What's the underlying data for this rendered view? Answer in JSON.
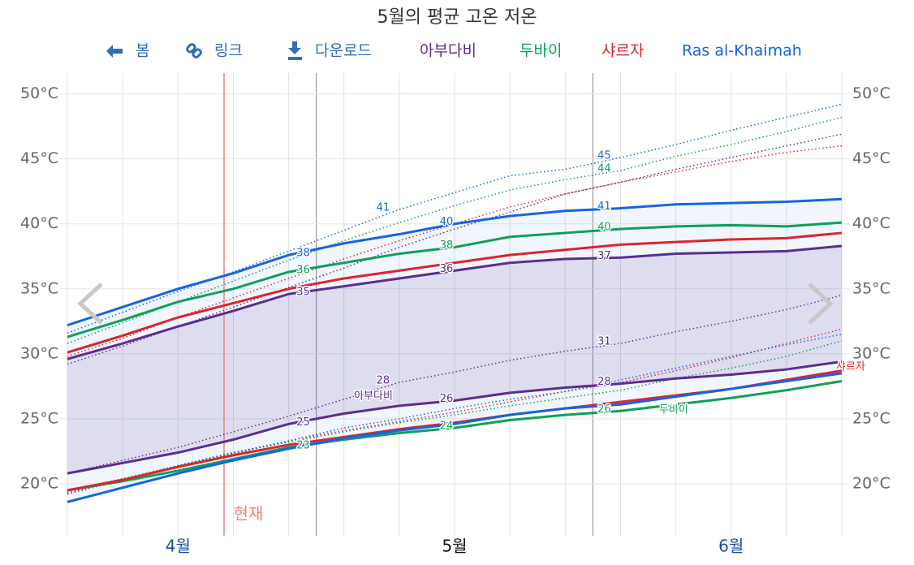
{
  "toolbar": [
    "봄",
    "링크",
    "다운로드"
  ],
  "chart_data": {
    "type": "line",
    "title": "5월의 평균 고온 저온",
    "today_label": "현재",
    "categories": [
      null,
      null,
      "4월",
      null,
      null,
      null,
      null,
      "5월",
      null,
      null,
      null,
      null,
      "6월",
      null,
      null
    ],
    "ylim": [
      16,
      51.6
    ],
    "yticks": [
      {
        "value": 20,
        "label": "20°C"
      },
      {
        "value": 25,
        "label": "25°C"
      },
      {
        "value": 30,
        "label": "30°C"
      },
      {
        "value": 35,
        "label": "35°C"
      },
      {
        "value": 40,
        "label": "40°C"
      },
      {
        "value": 45,
        "label": "45°C"
      },
      {
        "value": 50,
        "label": "50°C"
      }
    ],
    "grid": true,
    "series": [
      {
        "name": "아부다비",
        "color": "#5c2d91",
        "band": true,
        "values": [
          29.6,
          30.8,
          32.1,
          33.3,
          34.6,
          35.2,
          35.8,
          36.4,
          37.0,
          37.3,
          37.4,
          37.7,
          37.8,
          37.9,
          38.3
        ],
        "value_labels": [
          null,
          null,
          null,
          null,
          "35",
          null,
          null,
          "36",
          null,
          null,
          "37",
          null,
          null,
          null,
          null
        ],
        "lows": [
          20.8,
          21.6,
          22.4,
          23.4,
          24.6,
          25.4,
          26.0,
          26.4,
          27.0,
          27.4,
          27.7,
          28.1,
          28.4,
          28.8,
          29.4
        ],
        "low_labels": [
          null,
          null,
          null,
          null,
          "25",
          null,
          null,
          "26",
          null,
          null,
          "28",
          null,
          null,
          null,
          null
        ],
        "high_dotted": [
          29.2,
          30.6,
          32.1,
          33.6,
          35.1,
          36.6,
          38.2,
          39.6,
          40.9,
          42.3,
          43.2,
          44.2,
          45.1,
          46.0,
          46.9
        ],
        "low_dotted": [
          20.8,
          21.8,
          22.8,
          24.0,
          25.2,
          26.5,
          27.8,
          28.6,
          29.5,
          30.2,
          30.8,
          31.7,
          32.5,
          33.4,
          34.5
        ],
        "low_dotted_labels": [
          null,
          null,
          null,
          null,
          null,
          null,
          "28",
          null,
          null,
          null,
          "31",
          null,
          null,
          null,
          null
        ]
      },
      {
        "name": "두바이",
        "color": "#0e9f5b",
        "band": false,
        "values": [
          31.3,
          32.6,
          34.0,
          35.0,
          36.3,
          37.0,
          37.7,
          38.2,
          39.0,
          39.3,
          39.6,
          39.8,
          39.9,
          39.8,
          40.1
        ],
        "value_labels": [
          null,
          null,
          null,
          null,
          "36",
          null,
          null,
          "38",
          null,
          null,
          "40",
          null,
          null,
          null,
          null
        ],
        "lows": [
          19.5,
          20.2,
          21.0,
          21.9,
          22.8,
          23.4,
          23.9,
          24.3,
          24.9,
          25.3,
          25.6,
          26.1,
          26.6,
          27.2,
          27.9
        ],
        "low_labels": [
          null,
          null,
          null,
          null,
          "23",
          null,
          null,
          "24",
          null,
          null,
          "26",
          null,
          null,
          null,
          null
        ],
        "high_dotted": [
          30.8,
          32.4,
          34.0,
          35.6,
          37.2,
          38.7,
          40.1,
          41.4,
          42.6,
          43.4,
          44.1,
          45.2,
          46.1,
          47.1,
          48.2
        ],
        "high_dotted_labels": [
          null,
          null,
          null,
          null,
          null,
          null,
          null,
          null,
          null,
          null,
          "44",
          null,
          null,
          null,
          null
        ],
        "low_dotted": [
          19.4,
          20.4,
          21.4,
          22.4,
          23.2,
          24.0,
          24.7,
          25.3,
          26.0,
          26.6,
          27.2,
          28.1,
          28.9,
          29.8,
          31.0
        ]
      },
      {
        "name": "샤르자",
        "color": "#dc2430",
        "band": false,
        "values": [
          30.1,
          31.4,
          32.8,
          33.9,
          35.0,
          35.8,
          36.4,
          37.0,
          37.6,
          38.0,
          38.4,
          38.6,
          38.8,
          38.9,
          39.3
        ],
        "lows": [
          19.5,
          20.3,
          21.3,
          22.2,
          23.0,
          23.6,
          24.2,
          24.7,
          25.3,
          25.8,
          26.3,
          26.8,
          27.3,
          28.0,
          28.7
        ],
        "high_dotted": [
          29.8,
          31.2,
          32.8,
          34.3,
          35.8,
          37.3,
          38.7,
          40.0,
          41.3,
          42.3,
          43.2,
          44.0,
          44.8,
          45.5,
          46.0
        ],
        "low_dotted": [
          19.3,
          20.3,
          21.3,
          22.3,
          23.3,
          24.1,
          24.8,
          25.5,
          26.3,
          27.1,
          27.8,
          28.7,
          29.7,
          30.8,
          31.9
        ]
      },
      {
        "name": "Ras al-Khaimah",
        "color": "#1565e0",
        "band": true,
        "values": [
          32.2,
          33.6,
          35.0,
          36.2,
          37.6,
          38.5,
          39.2,
          40.0,
          40.6,
          41.0,
          41.2,
          41.5,
          41.6,
          41.7,
          41.9
        ],
        "value_labels": [
          null,
          null,
          null,
          null,
          "38",
          null,
          null,
          "40",
          null,
          null,
          "41",
          null,
          null,
          null,
          null
        ],
        "lows": [
          18.6,
          19.7,
          20.8,
          21.8,
          22.7,
          23.5,
          24.1,
          24.6,
          25.3,
          25.8,
          26.1,
          26.7,
          27.3,
          27.9,
          28.5
        ],
        "high_dotted": [
          31.6,
          33.2,
          34.8,
          36.3,
          37.9,
          39.5,
          41.1,
          42.4,
          43.7,
          44.2,
          45.1,
          46.1,
          47.2,
          48.2,
          49.2
        ],
        "high_dotted_labels": [
          null,
          null,
          null,
          null,
          null,
          null,
          "41",
          null,
          null,
          null,
          "45",
          null,
          null,
          null,
          null
        ],
        "low_dotted": [
          19.2,
          20.3,
          21.4,
          22.4,
          23.3,
          24.3,
          25.0,
          25.8,
          26.5,
          27.1,
          28.0,
          28.9,
          29.8,
          30.7,
          31.5
        ]
      }
    ]
  }
}
